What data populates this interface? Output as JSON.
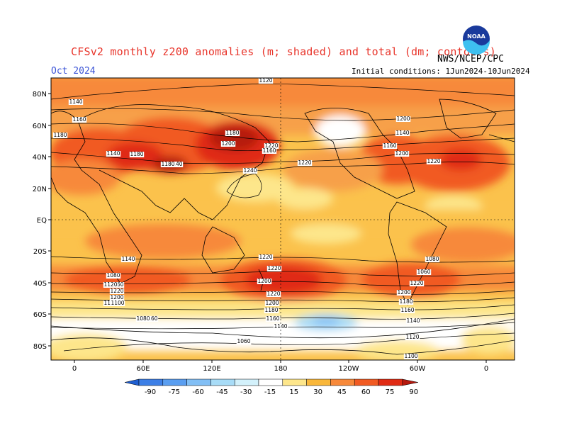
{
  "header": {
    "title": "CFSv2 monthly z200 anomalies (m; shaded) and total (dm; contours)",
    "month": "Oct 2024",
    "agency": "NWS/NCEP/CPC",
    "initial_conditions": "Initial conditions: 1Jun2024-10Jun2024",
    "logo_text": "NOAA"
  },
  "map": {
    "lat_labels": [
      "80N",
      "60N",
      "40N",
      "20N",
      "EQ",
      "20S",
      "40S",
      "60S",
      "80S"
    ],
    "lon_labels": [
      "0",
      "60E",
      "120E",
      "180",
      "120W",
      "60W",
      "0"
    ],
    "contour_labels": [
      "1120",
      "1140",
      "1160",
      "1180",
      "1140",
      "1180",
      "1200",
      "1220",
      "1160",
      "1180",
      "1140",
      "1180",
      "1200",
      "1140",
      "1160",
      "1200",
      "1220",
      "1220",
      "1240",
      "1220",
      "1220",
      "1200",
      "1220",
      "1200",
      "1180",
      "1160",
      "1140",
      "1120",
      "1080",
      "1060",
      "1220",
      "1200",
      "1180",
      "1160",
      "1140",
      "1120",
      "1100",
      "1080",
      "1060",
      "1220",
      "1200",
      "1180",
      "1160",
      "1140",
      "1120",
      "1100",
      "1080",
      "1060"
    ]
  },
  "colorbar": {
    "labels": [
      "-90",
      "-75",
      "-60",
      "-45",
      "-30",
      "-15",
      "15",
      "30",
      "45",
      "60",
      "75",
      "90"
    ],
    "colors": [
      "#1f5fd1",
      "#3d7fe6",
      "#5a9ef0",
      "#82bff5",
      "#a8dcf7",
      "#d3f1fb",
      "#ffffff",
      "#fde68b",
      "#f9b73a",
      "#f7893a",
      "#f15a22",
      "#e02b14",
      "#b51a0f"
    ]
  }
}
